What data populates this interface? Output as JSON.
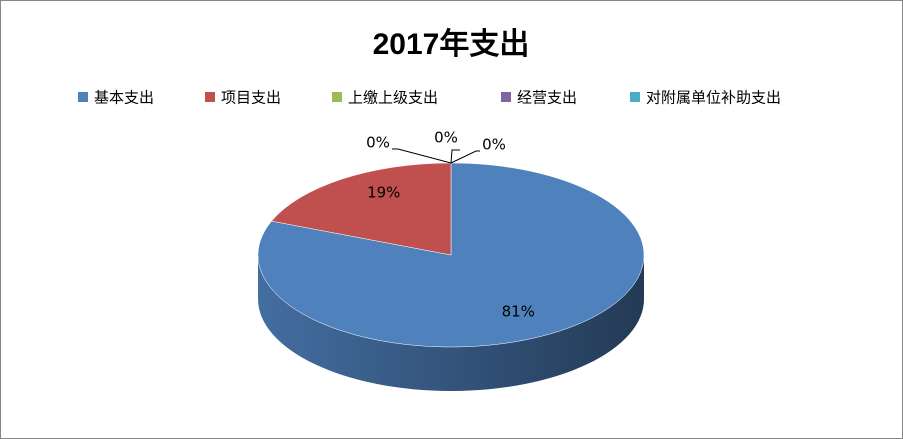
{
  "chart_data": {
    "type": "pie3d",
    "title": "2017年支出",
    "categories": [
      "基本支出",
      "项目支出",
      "上缴上级支出",
      "经营支出",
      "对附属单位补助支出"
    ],
    "values": [
      81,
      19,
      0,
      0,
      0
    ],
    "value_labels": [
      "81%",
      "19%",
      "0%",
      "0%",
      "0%"
    ],
    "colors": [
      "#4f81bd",
      "#c0504d",
      "#9bbb59",
      "#8064a2",
      "#4bacc6"
    ],
    "legend": "top"
  }
}
